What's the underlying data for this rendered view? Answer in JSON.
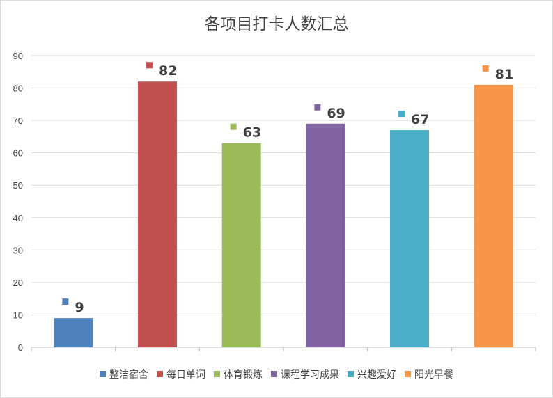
{
  "chart_data": {
    "type": "bar",
    "title": "各项目打卡人数汇总",
    "categories": [
      "整洁宿舍",
      "每日单词",
      "体育锻炼",
      "课程学习成果",
      "兴趣爱好",
      "阳光早餐"
    ],
    "values": [
      9,
      82,
      63,
      69,
      67,
      81
    ],
    "colors": [
      "#4f81bd",
      "#c0504d",
      "#9bbb59",
      "#8064a2",
      "#4bacc6",
      "#f79646"
    ],
    "ylim": [
      0,
      90
    ],
    "yticks": [
      "0",
      "10",
      "20",
      "30",
      "40",
      "50",
      "60",
      "70",
      "80",
      "90"
    ],
    "xlabel": "",
    "ylabel": "",
    "grid": true,
    "legend": "bottom",
    "data_labels": true
  }
}
